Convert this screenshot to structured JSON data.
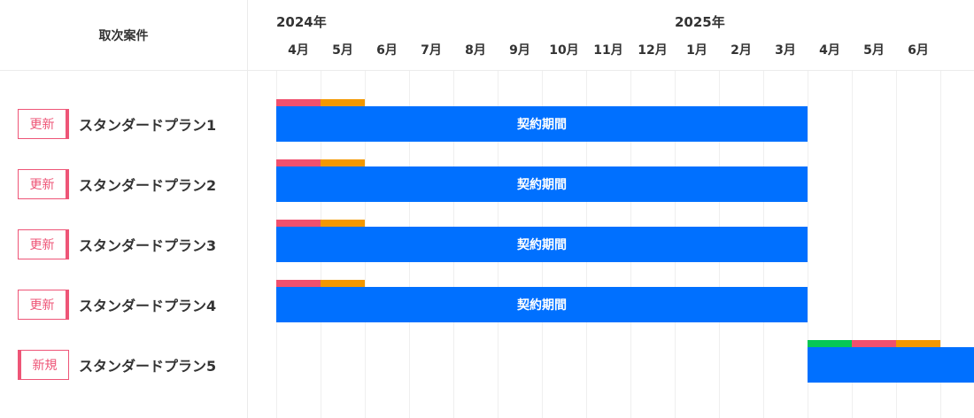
{
  "header": {
    "title": "取次案件"
  },
  "timeline": {
    "years": [
      {
        "label": "2024年",
        "start_index": 0
      },
      {
        "label": "2025年",
        "start_index": 9
      }
    ],
    "months": [
      "4月",
      "5月",
      "6月",
      "7月",
      "8月",
      "9月",
      "10月",
      "11月",
      "12月",
      "1月",
      "2月",
      "3月",
      "4月",
      "5月",
      "6月"
    ]
  },
  "colors": {
    "bar": "#0070ff",
    "pink": "#f0506e",
    "orange": "#f39800",
    "green": "#06c755",
    "badge": "#ee5577"
  },
  "rows": [
    {
      "badge": "更新",
      "type": "renew",
      "plan": "スタンダードプラン1",
      "bar_label": "契約期間",
      "bar_start": 0,
      "bar_end": 12,
      "phases": [
        {
          "color": "pink",
          "start": 0,
          "end": 1
        },
        {
          "color": "orange",
          "start": 1,
          "end": 2
        }
      ]
    },
    {
      "badge": "更新",
      "type": "renew",
      "plan": "スタンダードプラン2",
      "bar_label": "契約期間",
      "bar_start": 0,
      "bar_end": 12,
      "phases": [
        {
          "color": "pink",
          "start": 0,
          "end": 1
        },
        {
          "color": "orange",
          "start": 1,
          "end": 2
        }
      ]
    },
    {
      "badge": "更新",
      "type": "renew",
      "plan": "スタンダードプラン3",
      "bar_label": "契約期間",
      "bar_start": 0,
      "bar_end": 12,
      "phases": [
        {
          "color": "pink",
          "start": 0,
          "end": 1
        },
        {
          "color": "orange",
          "start": 1,
          "end": 2
        }
      ]
    },
    {
      "badge": "更新",
      "type": "renew",
      "plan": "スタンダードプラン4",
      "bar_label": "契約期間",
      "bar_start": 0,
      "bar_end": 12,
      "phases": [
        {
          "color": "pink",
          "start": 0,
          "end": 1
        },
        {
          "color": "orange",
          "start": 1,
          "end": 2
        }
      ]
    },
    {
      "badge": "新規",
      "type": "new",
      "plan": "スタンダードプラン5",
      "bar_label": "",
      "bar_start": 12,
      "bar_end": 16,
      "phases": [
        {
          "color": "green",
          "start": 12,
          "end": 13
        },
        {
          "color": "pink",
          "start": 13,
          "end": 14
        },
        {
          "color": "orange",
          "start": 14,
          "end": 15
        }
      ]
    }
  ]
}
